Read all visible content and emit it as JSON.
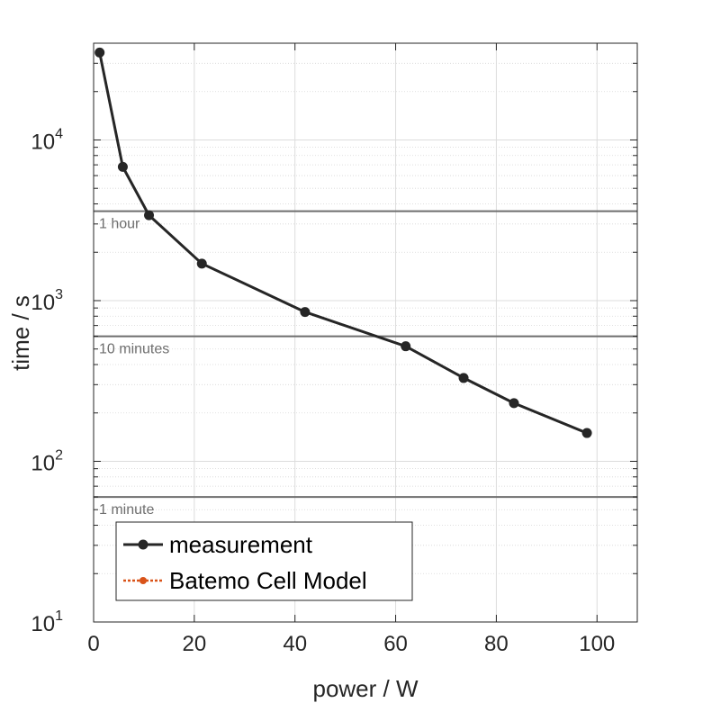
{
  "chart_data": {
    "type": "line",
    "xlabel": "power / W",
    "ylabel": "time / s",
    "xlim": [
      0,
      108
    ],
    "ylim": [
      10,
      40000
    ],
    "yscale": "log",
    "grid": true,
    "xticks": [
      "0",
      "20",
      "40",
      "60",
      "80",
      "100"
    ],
    "xtick_values": [
      0,
      20,
      40,
      60,
      80,
      100
    ],
    "yticks": [
      {
        "value": 10,
        "base": "10",
        "exp": "1"
      },
      {
        "value": 100,
        "base": "10",
        "exp": "2"
      },
      {
        "value": 1000,
        "base": "10",
        "exp": "3"
      },
      {
        "value": 10000,
        "base": "10",
        "exp": "4"
      }
    ],
    "reference_lines": [
      {
        "y": 3600,
        "label": "1 hour"
      },
      {
        "y": 600,
        "label": "10 minutes"
      },
      {
        "y": 60,
        "label": "1 minute"
      }
    ],
    "series": [
      {
        "name": "measurement",
        "color": "#262626",
        "x": [
          1.2,
          5.8,
          11.0,
          21.5,
          42.0,
          62.0,
          73.5,
          83.5,
          98.0
        ],
        "y": [
          35000,
          6800,
          3400,
          1700,
          850,
          520,
          330,
          230,
          150
        ]
      },
      {
        "name": "Batemo Cell Model",
        "color": "#d95319",
        "x": [],
        "y": []
      }
    ],
    "legend": {
      "position": "bottom-left"
    }
  }
}
